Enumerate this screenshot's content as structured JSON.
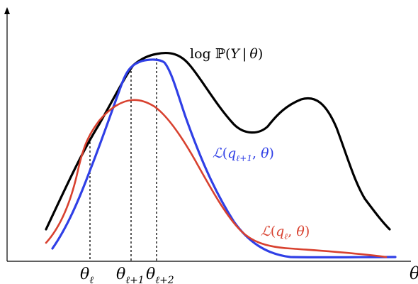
{
  "colors": {
    "axes": "#000000",
    "log_likelihood": "#000000",
    "elbo_next": "#2f3fe6",
    "elbo_current": "#d8412f"
  },
  "labels": {
    "log_likelihood": "log ℙ(Y | θ)",
    "elbo_next": "ℒ(q_{ℓ+1}, θ)",
    "elbo_current": "ℒ(q_ℓ, θ)",
    "x_axis": "θ"
  },
  "ticks": [
    "θ_ℓ",
    "θ_{ℓ+1}",
    "θ_{ℓ+2}"
  ]
}
